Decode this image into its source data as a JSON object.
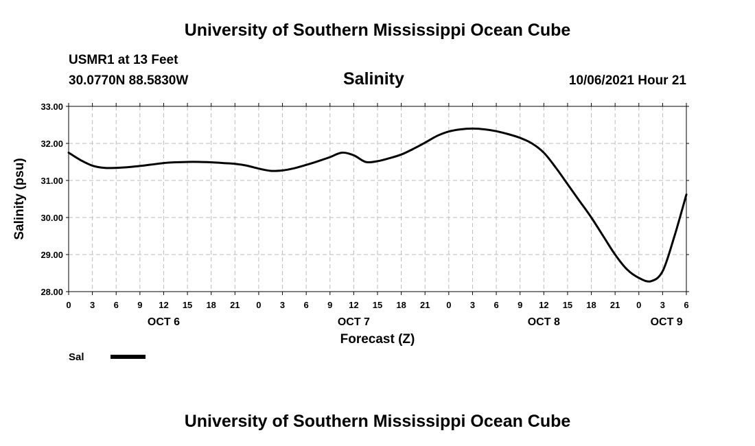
{
  "header": {
    "title": "University of Southern Mississippi Ocean Cube",
    "station": "USMR1 at 13 Feet",
    "coords": "30.0770N  88.5830W",
    "chart_title": "Salinity",
    "timestamp": "10/06/2021 Hour 21"
  },
  "footer": {
    "title": "University of Southern Mississippi Ocean Cube"
  },
  "colors": {
    "line": "#000000",
    "grid": "#bbbbbb"
  },
  "chart_data": {
    "type": "line",
    "title": "Salinity",
    "xlabel": "Forecast (Z)",
    "ylabel": "Salinity (psu)",
    "xlim": [
      0,
      78
    ],
    "ylim": [
      28.0,
      33.0
    ],
    "y_ticks": [
      "28.00",
      "29.00",
      "30.00",
      "31.00",
      "32.00",
      "33.00"
    ],
    "x_tick_labels": [
      "0",
      "3",
      "6",
      "9",
      "12",
      "15",
      "18",
      "21",
      "0",
      "3",
      "6",
      "9",
      "12",
      "15",
      "18",
      "21",
      "0",
      "3",
      "6",
      "9",
      "12",
      "15",
      "18",
      "21",
      "0",
      "3",
      "6"
    ],
    "day_labels": [
      {
        "label": "OCT 6",
        "hour": 12
      },
      {
        "label": "OCT 7",
        "hour": 36
      },
      {
        "label": "OCT 8",
        "hour": 60
      },
      {
        "label": "OCT 9",
        "hour": 75.5
      }
    ],
    "grid": true,
    "legend": {
      "position": "bottom-left",
      "label": "Sal"
    },
    "series": [
      {
        "name": "Sal",
        "x": [
          0,
          1.5,
          3,
          4.5,
          6,
          7.5,
          9,
          10.5,
          12,
          13.5,
          15,
          16.5,
          18,
          19.5,
          21,
          22.5,
          24,
          25.5,
          27,
          28.5,
          30,
          31.5,
          33,
          34.5,
          36,
          37.5,
          39,
          40.5,
          42,
          43.5,
          45,
          46.5,
          48,
          49.5,
          51,
          52.5,
          54,
          55.5,
          57,
          58.5,
          60,
          61.5,
          63,
          64.5,
          66,
          67.5,
          69,
          70.5,
          72,
          73.5,
          75,
          76.5,
          78
        ],
        "values": [
          31.75,
          31.55,
          31.4,
          31.34,
          31.34,
          31.36,
          31.39,
          31.43,
          31.47,
          31.49,
          31.5,
          31.5,
          31.49,
          31.47,
          31.45,
          31.4,
          31.32,
          31.26,
          31.27,
          31.33,
          31.42,
          31.52,
          31.63,
          31.75,
          31.68,
          31.5,
          31.52,
          31.6,
          31.7,
          31.85,
          32.02,
          32.2,
          32.32,
          32.38,
          32.4,
          32.38,
          32.33,
          32.25,
          32.15,
          32.0,
          31.75,
          31.35,
          30.9,
          30.45,
          30.0,
          29.5,
          29.0,
          28.6,
          28.37,
          28.28,
          28.55,
          29.5,
          30.62
        ]
      }
    ]
  }
}
